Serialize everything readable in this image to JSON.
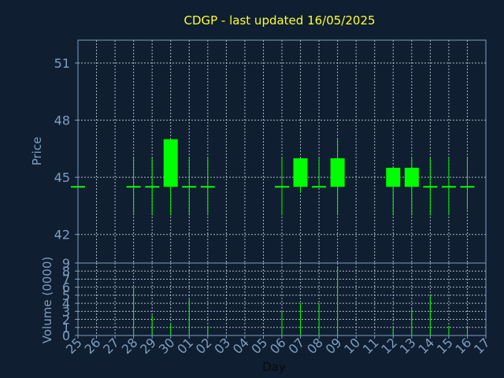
{
  "chart_data": {
    "type": "candlestick",
    "title": "CDGP - last updated 16/05/2025",
    "xlabel": "Day",
    "price_panel": {
      "ylabel": "Price",
      "ylim": [
        40.5,
        52.2
      ],
      "yticks": [
        42,
        45,
        48,
        51
      ]
    },
    "volume_panel": {
      "ylabel": "Volume (0000)",
      "ylim": [
        0,
        9
      ],
      "yticks": [
        0,
        1,
        2,
        3,
        4,
        5,
        6,
        7,
        8,
        9
      ]
    },
    "x_tick_labels": [
      "25",
      "26",
      "27",
      "28",
      "29",
      "30",
      "01",
      "02",
      "03",
      "04",
      "05",
      "06",
      "07",
      "08",
      "09",
      "10",
      "11",
      "12",
      "13",
      "14",
      "15",
      "16",
      "17"
    ],
    "colors": {
      "background": "#0f1e30",
      "title": "#ffff33",
      "axis": "#7f9ec0",
      "candle": "#00ff00",
      "grid": "#c8d2dc"
    },
    "candles": [
      {
        "day": "25",
        "open": 44.5,
        "high": 44.5,
        "low": 44.5,
        "close": 44.5,
        "volume": 0
      },
      {
        "day": "28",
        "open": 44.5,
        "high": 46,
        "low": 43,
        "close": 44.5,
        "volume": 6
      },
      {
        "day": "29",
        "open": 44.5,
        "high": 46,
        "low": 43,
        "close": 44.5,
        "volume": 2.5
      },
      {
        "day": "30",
        "open": 44.5,
        "high": 47,
        "low": 43,
        "close": 47,
        "volume": 1.5
      },
      {
        "day": "01",
        "open": 44.5,
        "high": 46,
        "low": 43,
        "close": 44.5,
        "volume": 4.5
      },
      {
        "day": "02",
        "open": 44.5,
        "high": 46,
        "low": 43,
        "close": 44.5,
        "volume": 1.2
      },
      {
        "day": "06",
        "open": 44.5,
        "high": 46,
        "low": 43,
        "close": 44.5,
        "volume": 3
      },
      {
        "day": "07",
        "open": 44.5,
        "high": 46,
        "low": 44.2,
        "close": 46,
        "volume": 4
      },
      {
        "day": "08",
        "open": 44.5,
        "high": 46,
        "low": 44.5,
        "close": 44.5,
        "volume": 4
      },
      {
        "day": "09",
        "open": 44.5,
        "high": 47,
        "low": 43,
        "close": 46,
        "volume": 8.5
      },
      {
        "day": "12",
        "open": 44.5,
        "high": 45.5,
        "low": 43,
        "close": 45.5,
        "volume": 1
      },
      {
        "day": "13",
        "open": 44.5,
        "high": 46,
        "low": 43,
        "close": 45.5,
        "volume": 3.3
      },
      {
        "day": "14",
        "open": 44.5,
        "high": 46,
        "low": 43,
        "close": 44.5,
        "volume": 5
      },
      {
        "day": "15",
        "open": 44.5,
        "high": 46,
        "low": 43,
        "close": 44.5,
        "volume": 1.2
      },
      {
        "day": "16",
        "open": 44.5,
        "high": 46,
        "low": 43.3,
        "close": 44.5,
        "volume": 1
      }
    ]
  }
}
